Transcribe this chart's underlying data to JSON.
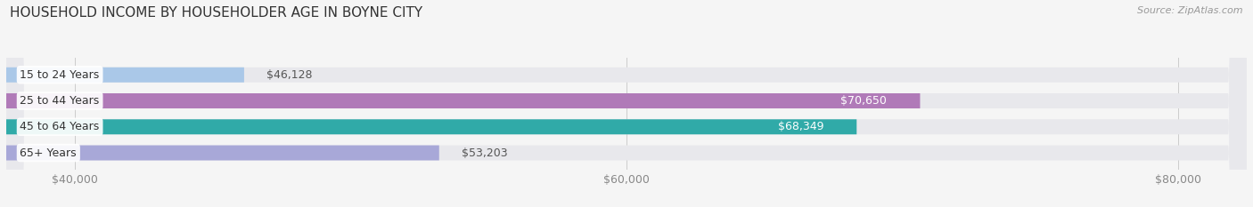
{
  "title": "HOUSEHOLD INCOME BY HOUSEHOLDER AGE IN BOYNE CITY",
  "source": "Source: ZipAtlas.com",
  "categories": [
    "15 to 24 Years",
    "25 to 44 Years",
    "45 to 64 Years",
    "65+ Years"
  ],
  "values": [
    46128,
    70650,
    68349,
    53203
  ],
  "bar_colors": [
    "#aac8e8",
    "#b07ab8",
    "#30aaa8",
    "#a8a8d8"
  ],
  "label_colors": [
    "#555555",
    "#ffffff",
    "#ffffff",
    "#555555"
  ],
  "xmin": 37500,
  "xmax": 82500,
  "xticks": [
    40000,
    60000,
    80000
  ],
  "xtick_labels": [
    "$40,000",
    "$60,000",
    "$80,000"
  ],
  "value_labels": [
    "$46,128",
    "$70,650",
    "$68,349",
    "$53,203"
  ],
  "bar_height": 0.58,
  "background_color": "#f5f5f5",
  "bar_bg_color": "#e8e8ec",
  "title_fontsize": 11,
  "label_fontsize": 9,
  "cat_fontsize": 9,
  "tick_fontsize": 9,
  "source_fontsize": 8
}
